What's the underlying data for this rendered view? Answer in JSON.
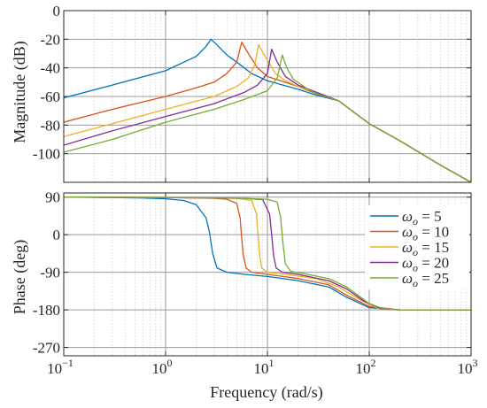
{
  "chart_data": [
    {
      "type": "line",
      "name": "magnitude",
      "xscale": "log",
      "xlim": [
        0.1,
        1000
      ],
      "ylim": [
        -120,
        0
      ],
      "xlabel": "",
      "ylabel": "Magnitude (dB)",
      "yticks": [
        "0",
        "-20",
        "-40",
        "-60",
        "-80",
        "-100"
      ],
      "yticks_values": [
        0,
        -20,
        -40,
        -60,
        -80,
        -100
      ],
      "grid": true,
      "series": [
        {
          "color": "#0072BD",
          "w0": 5,
          "x": [
            0.1,
            0.3,
            1,
            2,
            2.5,
            2.8,
            3.2,
            4,
            5,
            7,
            10,
            20,
            30,
            50,
            100,
            200,
            500,
            1000
          ],
          "y": [
            -61,
            -52,
            -42,
            -32,
            -25,
            -20,
            -24,
            -31,
            -36,
            -44,
            -49,
            -55,
            -59,
            -63,
            -79,
            -91,
            -108,
            -120
          ]
        },
        {
          "color": "#D95319",
          "w0": 10,
          "x": [
            0.1,
            0.3,
            1,
            2,
            3,
            4,
            5,
            5.6,
            6.5,
            8,
            10,
            20,
            30,
            50,
            100,
            200,
            500,
            1000
          ],
          "y": [
            -78,
            -69,
            -60,
            -54,
            -50,
            -44,
            -36,
            -22,
            -30,
            -40,
            -46,
            -53,
            -58,
            -63,
            -79,
            -91,
            -108,
            -120
          ]
        },
        {
          "color": "#EDB120",
          "w0": 15,
          "x": [
            0.1,
            0.3,
            1,
            3,
            5,
            6.5,
            7.5,
            8.2,
            9.5,
            12,
            15,
            20,
            30,
            50,
            100,
            200,
            500,
            1000
          ],
          "y": [
            -88,
            -79,
            -69,
            -60,
            -53,
            -47,
            -38,
            -24,
            -32,
            -44,
            -49,
            -53,
            -57,
            -63,
            -79,
            -91,
            -108,
            -120
          ]
        },
        {
          "color": "#7E2F8E",
          "w0": 20,
          "x": [
            0.1,
            0.3,
            1,
            3,
            6,
            8,
            10,
            11,
            12.5,
            15,
            20,
            30,
            50,
            100,
            200,
            500,
            1000
          ],
          "y": [
            -94,
            -84,
            -74,
            -65,
            -57,
            -52,
            -44,
            -27,
            -36,
            -46,
            -52,
            -57,
            -63,
            -79,
            -91,
            -108,
            -120
          ]
        },
        {
          "color": "#77AC30",
          "w0": 25,
          "x": [
            0.1,
            0.3,
            1,
            3,
            6,
            10,
            12.5,
            14,
            15.5,
            18,
            25,
            30,
            50,
            100,
            200,
            500,
            1000
          ],
          "y": [
            -99,
            -90,
            -78,
            -69,
            -62,
            -56,
            -47,
            -31,
            -40,
            -48,
            -55,
            -58,
            -63,
            -79,
            -91,
            -108,
            -120
          ]
        }
      ]
    },
    {
      "type": "line",
      "name": "phase",
      "xscale": "log",
      "xlim": [
        0.1,
        1000
      ],
      "ylim": [
        -290,
        100
      ],
      "xlabel": "Frequency  (rad/s)",
      "ylabel": "Phase (deg)",
      "yticks": [
        "90",
        "0",
        "-90",
        "-180",
        "-270"
      ],
      "yticks_values": [
        90,
        0,
        -90,
        -180,
        -270
      ],
      "xticks_values": [
        0.1,
        1,
        10,
        100,
        1000
      ],
      "grid": true,
      "legend_position": "right",
      "series": [
        {
          "color": "#0072BD",
          "w0": 5,
          "x": [
            0.1,
            0.3,
            0.6,
            1,
            1.5,
            2,
            2.5,
            2.7,
            2.8,
            2.9,
            3.2,
            4,
            6,
            10,
            20,
            40,
            60,
            100,
            200,
            1000
          ],
          "y": [
            90,
            89,
            88,
            86,
            82,
            72,
            40,
            5,
            -20,
            -45,
            -80,
            -90,
            -95,
            -100,
            -110,
            -125,
            -150,
            -175,
            -180,
            -180
          ]
        },
        {
          "color": "#D95319",
          "w0": 10,
          "x": [
            0.1,
            1,
            2,
            3,
            4,
            5,
            5.4,
            5.6,
            5.8,
            6.2,
            7,
            10,
            20,
            40,
            60,
            100,
            200,
            1000
          ],
          "y": [
            90,
            89,
            88,
            87,
            85,
            75,
            40,
            -10,
            -50,
            -80,
            -90,
            -95,
            -105,
            -120,
            -145,
            -172,
            -180,
            -180
          ]
        },
        {
          "color": "#EDB120",
          "w0": 15,
          "x": [
            0.1,
            1,
            3,
            5,
            7,
            7.8,
            8.1,
            8.4,
            8.8,
            10,
            15,
            30,
            50,
            80,
            120,
            200,
            1000
          ],
          "y": [
            90,
            89,
            88,
            87,
            82,
            50,
            0,
            -50,
            -80,
            -90,
            -95,
            -105,
            -125,
            -155,
            -176,
            -180,
            -180
          ]
        },
        {
          "color": "#7E2F8E",
          "w0": 20,
          "x": [
            0.1,
            1,
            3,
            6,
            9,
            10.5,
            11,
            11.5,
            12.2,
            14,
            20,
            40,
            60,
            90,
            130,
            200,
            1000
          ],
          "y": [
            90,
            89,
            88,
            87,
            84,
            50,
            0,
            -50,
            -80,
            -90,
            -95,
            -110,
            -130,
            -160,
            -177,
            -180,
            -180
          ]
        },
        {
          "color": "#77AC30",
          "w0": 25,
          "x": [
            0.1,
            1,
            3,
            6,
            10,
            12.5,
            13.5,
            14.2,
            15,
            17,
            25,
            40,
            60,
            100,
            140,
            200,
            1000
          ],
          "y": [
            90,
            89,
            88,
            87,
            85,
            78,
            40,
            -20,
            -70,
            -88,
            -95,
            -105,
            -125,
            -165,
            -178,
            -180,
            -180
          ]
        }
      ],
      "legend": [
        {
          "sym": "ω",
          "sub": "o",
          "rest": " = 5",
          "color": "#0072BD"
        },
        {
          "sym": "ω",
          "sub": "o",
          "rest": " = 10",
          "color": "#D95319"
        },
        {
          "sym": "ω",
          "sub": "o",
          "rest": " = 15",
          "color": "#EDB120"
        },
        {
          "sym": "ω",
          "sub": "o",
          "rest": " = 20",
          "color": "#7E2F8E"
        },
        {
          "sym": "ω",
          "sub": "o",
          "rest": " = 25",
          "color": "#77AC30"
        }
      ]
    }
  ],
  "xticks": [
    {
      "base": "10",
      "exp": "−1"
    },
    {
      "base": "10",
      "exp": "0"
    },
    {
      "base": "10",
      "exp": "1"
    },
    {
      "base": "10",
      "exp": "2"
    },
    {
      "base": "10",
      "exp": "3"
    }
  ]
}
